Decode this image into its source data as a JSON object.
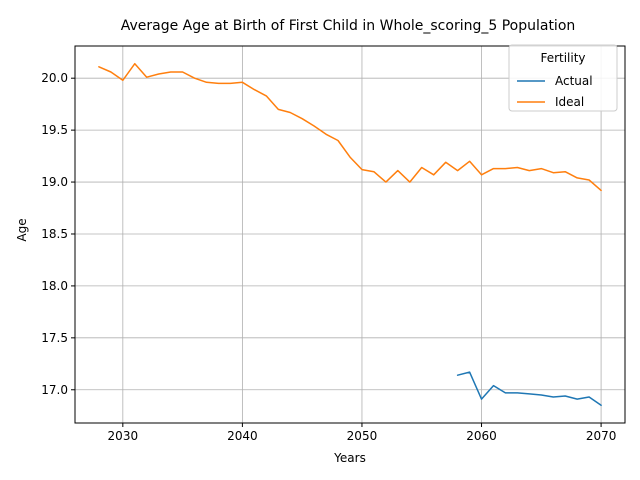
{
  "chart_data": {
    "type": "line",
    "title": "Average Age at Birth of First Child in Whole_scoring_5 Population",
    "xlabel": "Years",
    "ylabel": "Age",
    "xlim": [
      2026,
      2072
    ],
    "ylim": [
      16.68,
      20.31
    ],
    "xticks": [
      2030,
      2040,
      2050,
      2060,
      2070
    ],
    "yticks": [
      17.0,
      17.5,
      18.0,
      18.5,
      19.0,
      19.5,
      20.0
    ],
    "grid": true,
    "legend": {
      "title": "Fertility",
      "placement": "top-right"
    },
    "series": [
      {
        "name": "Actual",
        "color": "#1f77b4",
        "x": [
          2058,
          2059,
          2060,
          2061,
          2062,
          2063,
          2064,
          2065,
          2066,
          2067,
          2068,
          2069,
          2070
        ],
        "values": [
          17.14,
          17.17,
          16.91,
          17.04,
          16.97,
          16.97,
          16.96,
          16.95,
          16.93,
          16.94,
          16.91,
          16.93,
          16.85
        ]
      },
      {
        "name": "Ideal",
        "color": "#ff7f0e",
        "x": [
          2028,
          2029,
          2030,
          2031,
          2032,
          2033,
          2034,
          2035,
          2036,
          2037,
          2038,
          2039,
          2040,
          2041,
          2042,
          2043,
          2044,
          2045,
          2046,
          2047,
          2048,
          2049,
          2050,
          2051,
          2052,
          2053,
          2054,
          2055,
          2056,
          2057,
          2058,
          2059,
          2060,
          2061,
          2062,
          2063,
          2064,
          2065,
          2066,
          2067,
          2068,
          2069,
          2070
        ],
        "values": [
          20.11,
          20.06,
          19.98,
          20.14,
          20.01,
          20.04,
          20.06,
          20.06,
          20.0,
          19.96,
          19.95,
          19.95,
          19.96,
          19.89,
          19.83,
          19.7,
          19.67,
          19.61,
          19.54,
          19.46,
          19.4,
          19.24,
          19.12,
          19.1,
          19.0,
          19.11,
          19.0,
          19.14,
          19.07,
          19.19,
          19.11,
          19.2,
          19.07,
          19.13,
          19.13,
          19.14,
          19.11,
          19.13,
          19.09,
          19.1,
          19.04,
          19.02,
          18.92
        ]
      }
    ]
  }
}
